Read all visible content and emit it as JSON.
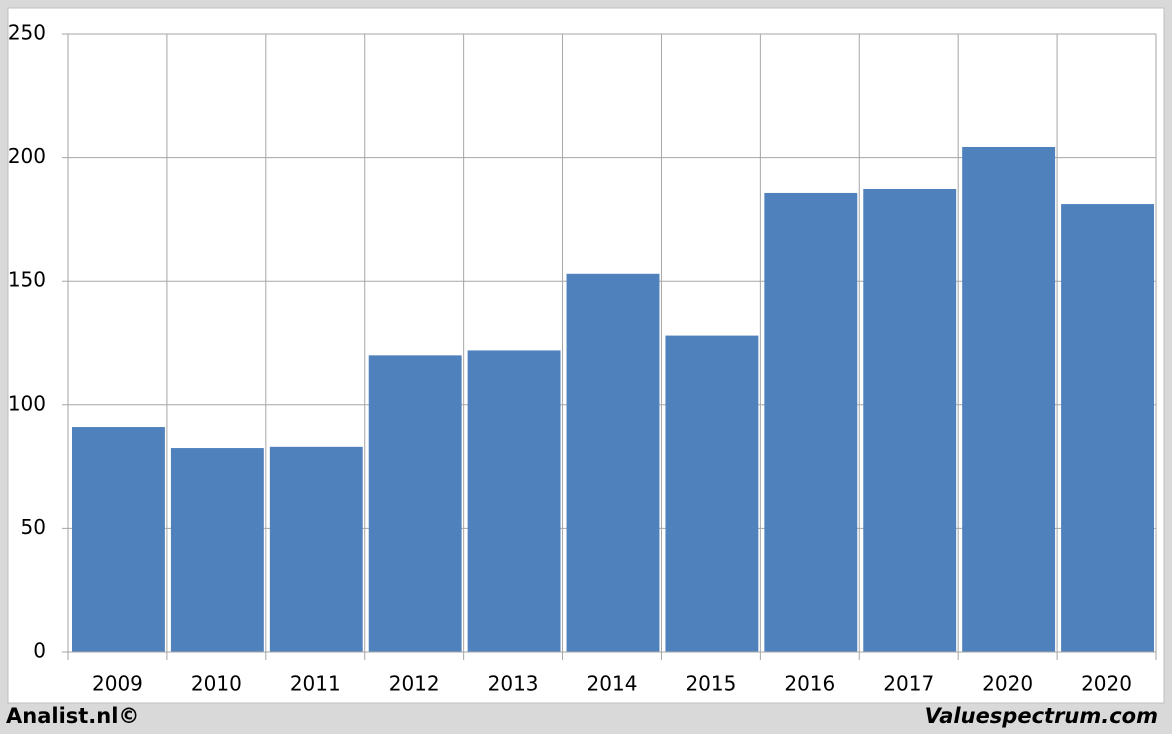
{
  "chart_data": {
    "type": "bar",
    "categories": [
      "2009",
      "2010",
      "2011",
      "2012",
      "2013",
      "2014",
      "2015",
      "2016",
      "2017",
      "2020",
      "2020"
    ],
    "values": [
      91,
      82.5,
      83,
      120,
      122,
      153,
      128,
      185.7,
      187.3,
      204.3,
      181.2
    ],
    "color": "#4f81bd",
    "ylim": [
      0,
      250
    ],
    "yticks": [
      0,
      50,
      100,
      150,
      200,
      250
    ],
    "grid": true,
    "credits": [
      "Analist.nl©",
      "Valuespectrum.com"
    ]
  }
}
